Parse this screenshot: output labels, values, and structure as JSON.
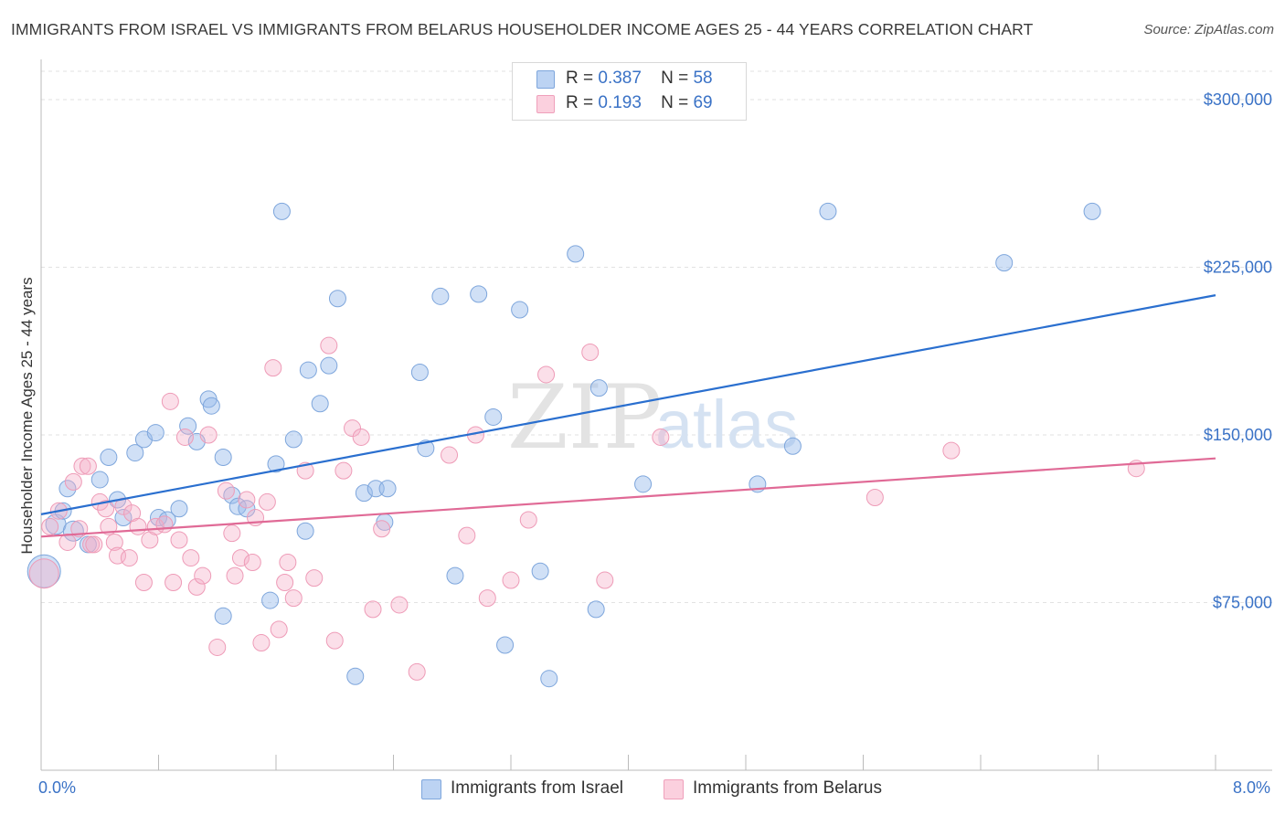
{
  "title": "IMMIGRANTS FROM ISRAEL VS IMMIGRANTS FROM BELARUS HOUSEHOLDER INCOME AGES 25 - 44 YEARS CORRELATION CHART",
  "source": "Source: ZipAtlas.com",
  "legend": {
    "r_label": "R =",
    "n_label": "N =",
    "israel": {
      "r": "0.387",
      "n": "58"
    },
    "belarus": {
      "r": "0.193",
      "n": "69"
    }
  },
  "watermark": {
    "part1": "ZIP",
    "part2": "atlas"
  },
  "chart_data": {
    "type": "scatter",
    "title": "IMMIGRANTS FROM ISRAEL VS IMMIGRANTS FROM BELARUS HOUSEHOLDER INCOME AGES 25 - 44 YEARS CORRELATION CHART",
    "xlabel": "",
    "ylabel": "Householder Income Ages 25 - 44 years",
    "xlim": [
      0.0,
      8.0
    ],
    "ylim": [
      0,
      318000
    ],
    "x_tick_labels": [
      "0.0%",
      "8.0%"
    ],
    "y_ticks": [
      75000,
      150000,
      225000,
      300000
    ],
    "y_tick_labels": [
      "$75,000",
      "$150,000",
      "$225,000",
      "$300,000"
    ],
    "grid": true,
    "legend_position": "top-center",
    "series": [
      {
        "name": "Immigrants from Israel",
        "color": "#8fb4e6",
        "line_color": "#2a6fcf",
        "r": 0.387,
        "n": 58,
        "trend": {
          "x": [
            0.0,
            8.0
          ],
          "y": [
            114500,
            212500
          ]
        },
        "points": [
          [
            0.02,
            89000,
            18
          ],
          [
            0.1,
            110000,
            11
          ],
          [
            0.15,
            116000,
            9
          ],
          [
            0.18,
            126000,
            9
          ],
          [
            0.22,
            107000,
            11
          ],
          [
            0.32,
            101000,
            9
          ],
          [
            0.4,
            130000,
            9
          ],
          [
            0.46,
            140000,
            9
          ],
          [
            0.52,
            121000,
            9
          ],
          [
            0.56,
            113000,
            9
          ],
          [
            0.64,
            142000,
            9
          ],
          [
            0.7,
            148000,
            9
          ],
          [
            0.78,
            151000,
            9
          ],
          [
            0.8,
            113000,
            9
          ],
          [
            0.86,
            112000,
            9
          ],
          [
            0.94,
            117000,
            9
          ],
          [
            1.0,
            154000,
            9
          ],
          [
            1.06,
            147000,
            9
          ],
          [
            1.14,
            166000,
            9
          ],
          [
            1.16,
            163000,
            9
          ],
          [
            1.24,
            140000,
            9
          ],
          [
            1.3,
            123000,
            9
          ],
          [
            1.34,
            118000,
            9
          ],
          [
            1.4,
            117000,
            9
          ],
          [
            1.24,
            69000,
            9
          ],
          [
            1.56,
            76000,
            9
          ],
          [
            1.6,
            137000,
            9
          ],
          [
            1.64,
            250000,
            9
          ],
          [
            1.72,
            148000,
            9
          ],
          [
            1.8,
            107000,
            9
          ],
          [
            1.82,
            179000,
            9
          ],
          [
            1.9,
            164000,
            9
          ],
          [
            1.96,
            181000,
            9
          ],
          [
            2.02,
            211000,
            9
          ],
          [
            2.14,
            42000,
            9
          ],
          [
            2.2,
            124000,
            9
          ],
          [
            2.28,
            126000,
            9
          ],
          [
            2.34,
            111000,
            9
          ],
          [
            2.36,
            126000,
            9
          ],
          [
            2.58,
            178000,
            9
          ],
          [
            2.62,
            144000,
            9
          ],
          [
            2.72,
            212000,
            9
          ],
          [
            2.82,
            87000,
            9
          ],
          [
            2.98,
            213000,
            9
          ],
          [
            3.08,
            158000,
            9
          ],
          [
            3.16,
            56000,
            9
          ],
          [
            3.26,
            206000,
            9
          ],
          [
            3.4,
            89000,
            9
          ],
          [
            3.46,
            41000,
            9
          ],
          [
            3.64,
            231000,
            9
          ],
          [
            3.78,
            72000,
            9
          ],
          [
            3.8,
            171000,
            9
          ],
          [
            4.1,
            128000,
            9
          ],
          [
            4.88,
            128000,
            9
          ],
          [
            5.12,
            145000,
            9
          ],
          [
            5.36,
            250000,
            9
          ],
          [
            6.56,
            227000,
            9
          ],
          [
            7.16,
            250000,
            9
          ]
        ]
      },
      {
        "name": "Immigrants from Belarus",
        "color": "#f3a3bf",
        "line_color": "#e06a96",
        "r": 0.193,
        "n": 69,
        "trend": {
          "x": [
            0.0,
            8.0
          ],
          "y": [
            104500,
            139500
          ]
        },
        "points": [
          [
            0.02,
            88000,
            16
          ],
          [
            0.06,
            109000,
            9
          ],
          [
            0.12,
            116000,
            9
          ],
          [
            0.18,
            102000,
            9
          ],
          [
            0.22,
            129000,
            9
          ],
          [
            0.26,
            108000,
            9
          ],
          [
            0.28,
            136000,
            9
          ],
          [
            0.32,
            136000,
            9
          ],
          [
            0.34,
            101000,
            9
          ],
          [
            0.36,
            101000,
            9
          ],
          [
            0.4,
            120000,
            9
          ],
          [
            0.44,
            117000,
            9
          ],
          [
            0.46,
            109000,
            9
          ],
          [
            0.5,
            102000,
            9
          ],
          [
            0.52,
            96000,
            9
          ],
          [
            0.56,
            118000,
            9
          ],
          [
            0.6,
            95000,
            9
          ],
          [
            0.62,
            115000,
            9
          ],
          [
            0.66,
            109000,
            9
          ],
          [
            0.7,
            84000,
            9
          ],
          [
            0.74,
            103000,
            9
          ],
          [
            0.78,
            109000,
            9
          ],
          [
            0.84,
            110000,
            9
          ],
          [
            0.88,
            165000,
            9
          ],
          [
            0.9,
            84000,
            9
          ],
          [
            0.94,
            103000,
            9
          ],
          [
            0.98,
            149000,
            9
          ],
          [
            1.02,
            95000,
            9
          ],
          [
            1.06,
            82000,
            9
          ],
          [
            1.1,
            87000,
            9
          ],
          [
            1.14,
            150000,
            9
          ],
          [
            1.2,
            55000,
            9
          ],
          [
            1.26,
            125000,
            9
          ],
          [
            1.3,
            106000,
            9
          ],
          [
            1.32,
            87000,
            9
          ],
          [
            1.36,
            95000,
            9
          ],
          [
            1.4,
            121000,
            9
          ],
          [
            1.44,
            93000,
            9
          ],
          [
            1.46,
            113000,
            9
          ],
          [
            1.5,
            57000,
            9
          ],
          [
            1.54,
            120000,
            9
          ],
          [
            1.58,
            180000,
            9
          ],
          [
            1.62,
            63000,
            9
          ],
          [
            1.66,
            84000,
            9
          ],
          [
            1.68,
            93000,
            9
          ],
          [
            1.72,
            77000,
            9
          ],
          [
            1.8,
            134000,
            9
          ],
          [
            1.86,
            86000,
            9
          ],
          [
            1.96,
            190000,
            9
          ],
          [
            2.0,
            58000,
            9
          ],
          [
            2.06,
            134000,
            9
          ],
          [
            2.12,
            153000,
            9
          ],
          [
            2.18,
            149000,
            9
          ],
          [
            2.26,
            72000,
            9
          ],
          [
            2.32,
            108000,
            9
          ],
          [
            2.44,
            74000,
            9
          ],
          [
            2.56,
            44000,
            9
          ],
          [
            2.78,
            141000,
            9
          ],
          [
            2.9,
            105000,
            9
          ],
          [
            2.96,
            150000,
            9
          ],
          [
            3.04,
            77000,
            9
          ],
          [
            3.2,
            85000,
            9
          ],
          [
            3.32,
            112000,
            9
          ],
          [
            3.44,
            177000,
            9
          ],
          [
            3.74,
            187000,
            9
          ],
          [
            3.84,
            85000,
            9
          ],
          [
            4.22,
            149000,
            9
          ],
          [
            5.68,
            122000,
            9
          ],
          [
            6.2,
            143000,
            9
          ],
          [
            7.46,
            135000,
            9
          ]
        ]
      }
    ]
  }
}
